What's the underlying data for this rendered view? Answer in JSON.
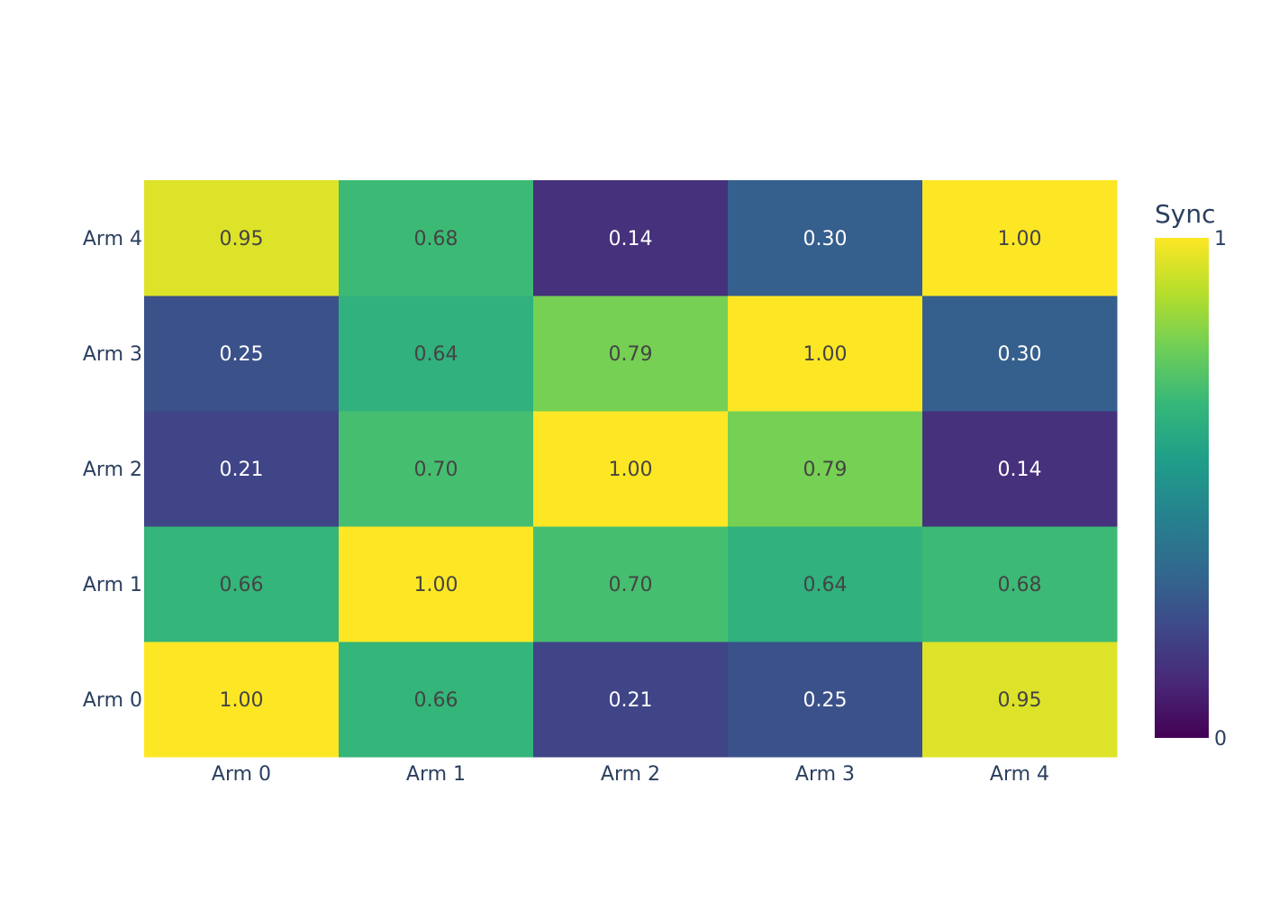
{
  "chart_data": {
    "type": "heatmap",
    "x_categories": [
      "Arm 0",
      "Arm 1",
      "Arm 2",
      "Arm 3",
      "Arm 4"
    ],
    "y_categories": [
      "Arm 0",
      "Arm 1",
      "Arm 2",
      "Arm 3",
      "Arm 4"
    ],
    "z": [
      [
        1.0,
        0.66,
        0.21,
        0.25,
        0.95
      ],
      [
        0.66,
        1.0,
        0.7,
        0.64,
        0.68
      ],
      [
        0.21,
        0.7,
        1.0,
        0.79,
        0.14
      ],
      [
        0.25,
        0.64,
        0.79,
        1.0,
        0.3
      ],
      [
        0.95,
        0.68,
        0.14,
        0.3,
        1.0
      ]
    ],
    "text_format": "0.00",
    "colorscale": "Viridis",
    "zrange": [
      0,
      1
    ],
    "colorbar": {
      "title": "Sync",
      "tick_labels": [
        "0",
        "1"
      ],
      "tick_values": [
        0,
        1
      ]
    },
    "title": "",
    "xlabel": "",
    "ylabel": ""
  }
}
